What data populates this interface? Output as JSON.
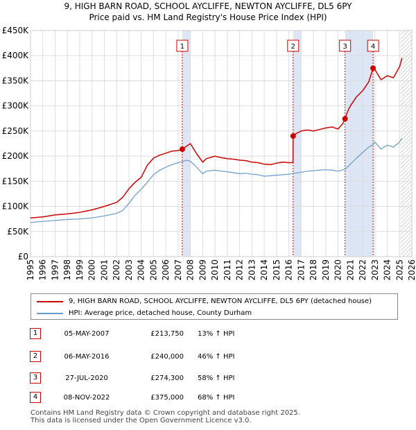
{
  "header": {
    "title_line1": "9, HIGH BARN ROAD, SCHOOL AYCLIFFE, NEWTON AYCLIFFE, DL5 6PY",
    "title_line2": "Price paid vs. HM Land Registry's House Price Index (HPI)"
  },
  "colors": {
    "property": "#cc0000",
    "hpi": "#6699cc",
    "shade": "#dde6f5",
    "grid": "#dddddd",
    "hatch": "#aaaaaa"
  },
  "legend": {
    "property_label": "9, HIGH BARN ROAD, SCHOOL AYCLIFFE, NEWTON AYCLIFFE, DL5 6PY (detached house)",
    "hpi_label": "HPI: Average price, detached house, County Durham"
  },
  "sales": [
    {
      "num": "1",
      "date": "05-MAY-2007",
      "price": "£213,750",
      "hpi": "13% ↑ HPI"
    },
    {
      "num": "2",
      "date": "06-MAY-2016",
      "price": "£240,000",
      "hpi": "46% ↑ HPI"
    },
    {
      "num": "3",
      "date": "27-JUL-2020",
      "price": "£274,300",
      "hpi": "58% ↑ HPI"
    },
    {
      "num": "4",
      "date": "08-NOV-2022",
      "price": "£375,000",
      "hpi": "68% ↑ HPI"
    }
  ],
  "footer": {
    "line1": "Contains HM Land Registry data © Crown copyright and database right 2025.",
    "line2": "This data is licensed under the Open Government Licence v3.0."
  },
  "chart_data": {
    "type": "line",
    "title": "9, HIGH BARN ROAD, SCHOOL AYCLIFFE, NEWTON AYCLIFFE, DL5 6PY",
    "subtitle": "Price paid vs. HM Land Registry's House Price Index (HPI)",
    "xlim": [
      1995,
      2026
    ],
    "ylim": [
      0,
      450000
    ],
    "x_ticks": [
      "1995",
      "1996",
      "1997",
      "1998",
      "1999",
      "2000",
      "2001",
      "2002",
      "2003",
      "2004",
      "2005",
      "2006",
      "2007",
      "2008",
      "2009",
      "2010",
      "2011",
      "2012",
      "2013",
      "2014",
      "2015",
      "2016",
      "2017",
      "2018",
      "2019",
      "2020",
      "2021",
      "2022",
      "2023",
      "2024",
      "2025",
      "2026"
    ],
    "y_ticks": [
      {
        "value": 0,
        "label": "£0"
      },
      {
        "value": 50000,
        "label": "£50K"
      },
      {
        "value": 100000,
        "label": "£100K"
      },
      {
        "value": 150000,
        "label": "£150K"
      },
      {
        "value": 200000,
        "label": "£200K"
      },
      {
        "value": 250000,
        "label": "£250K"
      },
      {
        "value": 300000,
        "label": "£300K"
      },
      {
        "value": 350000,
        "label": "£350K"
      },
      {
        "value": 400000,
        "label": "£400K"
      },
      {
        "value": 450000,
        "label": "£450K"
      }
    ],
    "shaded_ranges": [
      [
        2007.34,
        2008.0
      ],
      [
        2016.35,
        2017.0
      ],
      [
        2020.57,
        2022.85
      ]
    ],
    "forecast_start": 2025.1,
    "series": [
      {
        "name": "9, HIGH BARN ROAD, SCHOOL AYCLIFFE, NEWTON AYCLIFFE, DL5 6PY (detached house)",
        "x": [
          1995,
          1996,
          1997,
          1998,
          1999,
          2000,
          2001,
          2002,
          2002.5,
          2003,
          2003.5,
          2004,
          2004.5,
          2005,
          2005.5,
          2006,
          2006.5,
          2007,
          2007.34,
          2007.7,
          2008,
          2008.5,
          2009,
          2009.3,
          2010,
          2010.5,
          2011,
          2011.5,
          2012,
          2012.5,
          2013,
          2013.5,
          2014,
          2014.5,
          2015,
          2015.5,
          2016,
          2016.34,
          2016.35,
          2016.6,
          2017,
          2017.5,
          2018,
          2018.5,
          2019,
          2019.5,
          2020,
          2020.4,
          2020.57,
          2020.8,
          2021,
          2021.5,
          2022,
          2022.5,
          2022.85,
          2023,
          2023.5,
          2024,
          2024.5,
          2025,
          2025.2
        ],
        "y": [
          77000,
          79000,
          83000,
          85000,
          88000,
          93000,
          100000,
          108000,
          118000,
          135000,
          148000,
          158000,
          182000,
          196000,
          202000,
          206000,
          210000,
          211000,
          213750,
          220000,
          225000,
          205000,
          188000,
          195000,
          200000,
          197000,
          195000,
          194000,
          192000,
          191000,
          188000,
          187000,
          184000,
          183000,
          186000,
          188000,
          187000,
          187000,
          240000,
          245000,
          250000,
          252000,
          250000,
          253000,
          256000,
          258000,
          254000,
          265000,
          274300,
          290000,
          300000,
          318000,
          330000,
          348000,
          375000,
          372000,
          352000,
          360000,
          356000,
          378000,
          395000
        ]
      },
      {
        "name": "HPI: Average price, detached house, County Durham",
        "x": [
          1995,
          1996,
          1997,
          1998,
          1999,
          2000,
          2001,
          2002,
          2002.5,
          2003,
          2003.5,
          2004,
          2004.5,
          2005,
          2005.5,
          2006,
          2006.5,
          2007,
          2007.34,
          2007.7,
          2008,
          2008.5,
          2009,
          2009.3,
          2010,
          2010.5,
          2011,
          2011.5,
          2012,
          2012.5,
          2013,
          2013.5,
          2014,
          2014.5,
          2015,
          2015.5,
          2016,
          2016.5,
          2017,
          2017.5,
          2018,
          2018.5,
          2019,
          2019.5,
          2020,
          2020.57,
          2021,
          2021.5,
          2022,
          2022.5,
          2022.85,
          2023,
          2023.5,
          2024,
          2024.5,
          2025,
          2025.2
        ],
        "y": [
          68000,
          70000,
          72000,
          74000,
          75000,
          77000,
          81000,
          86000,
          92000,
          106000,
          122000,
          134000,
          148000,
          163000,
          172000,
          178000,
          183000,
          187000,
          189000,
          192000,
          190000,
          178000,
          165000,
          170000,
          172000,
          170000,
          169000,
          167000,
          165000,
          166000,
          164000,
          163000,
          160000,
          161000,
          162000,
          163000,
          164000,
          166000,
          168000,
          170000,
          171000,
          172000,
          173000,
          172000,
          170000,
          174000,
          184000,
          196000,
          207000,
          218000,
          223000,
          228000,
          214000,
          222000,
          218000,
          228000,
          236000
        ]
      }
    ],
    "sale_markers": [
      {
        "label": "1",
        "x": 2007.34,
        "y": 213750
      },
      {
        "label": "2",
        "x": 2016.35,
        "y": 240000
      },
      {
        "label": "3",
        "x": 2020.57,
        "y": 274300
      },
      {
        "label": "4",
        "x": 2022.85,
        "y": 375000
      }
    ]
  }
}
